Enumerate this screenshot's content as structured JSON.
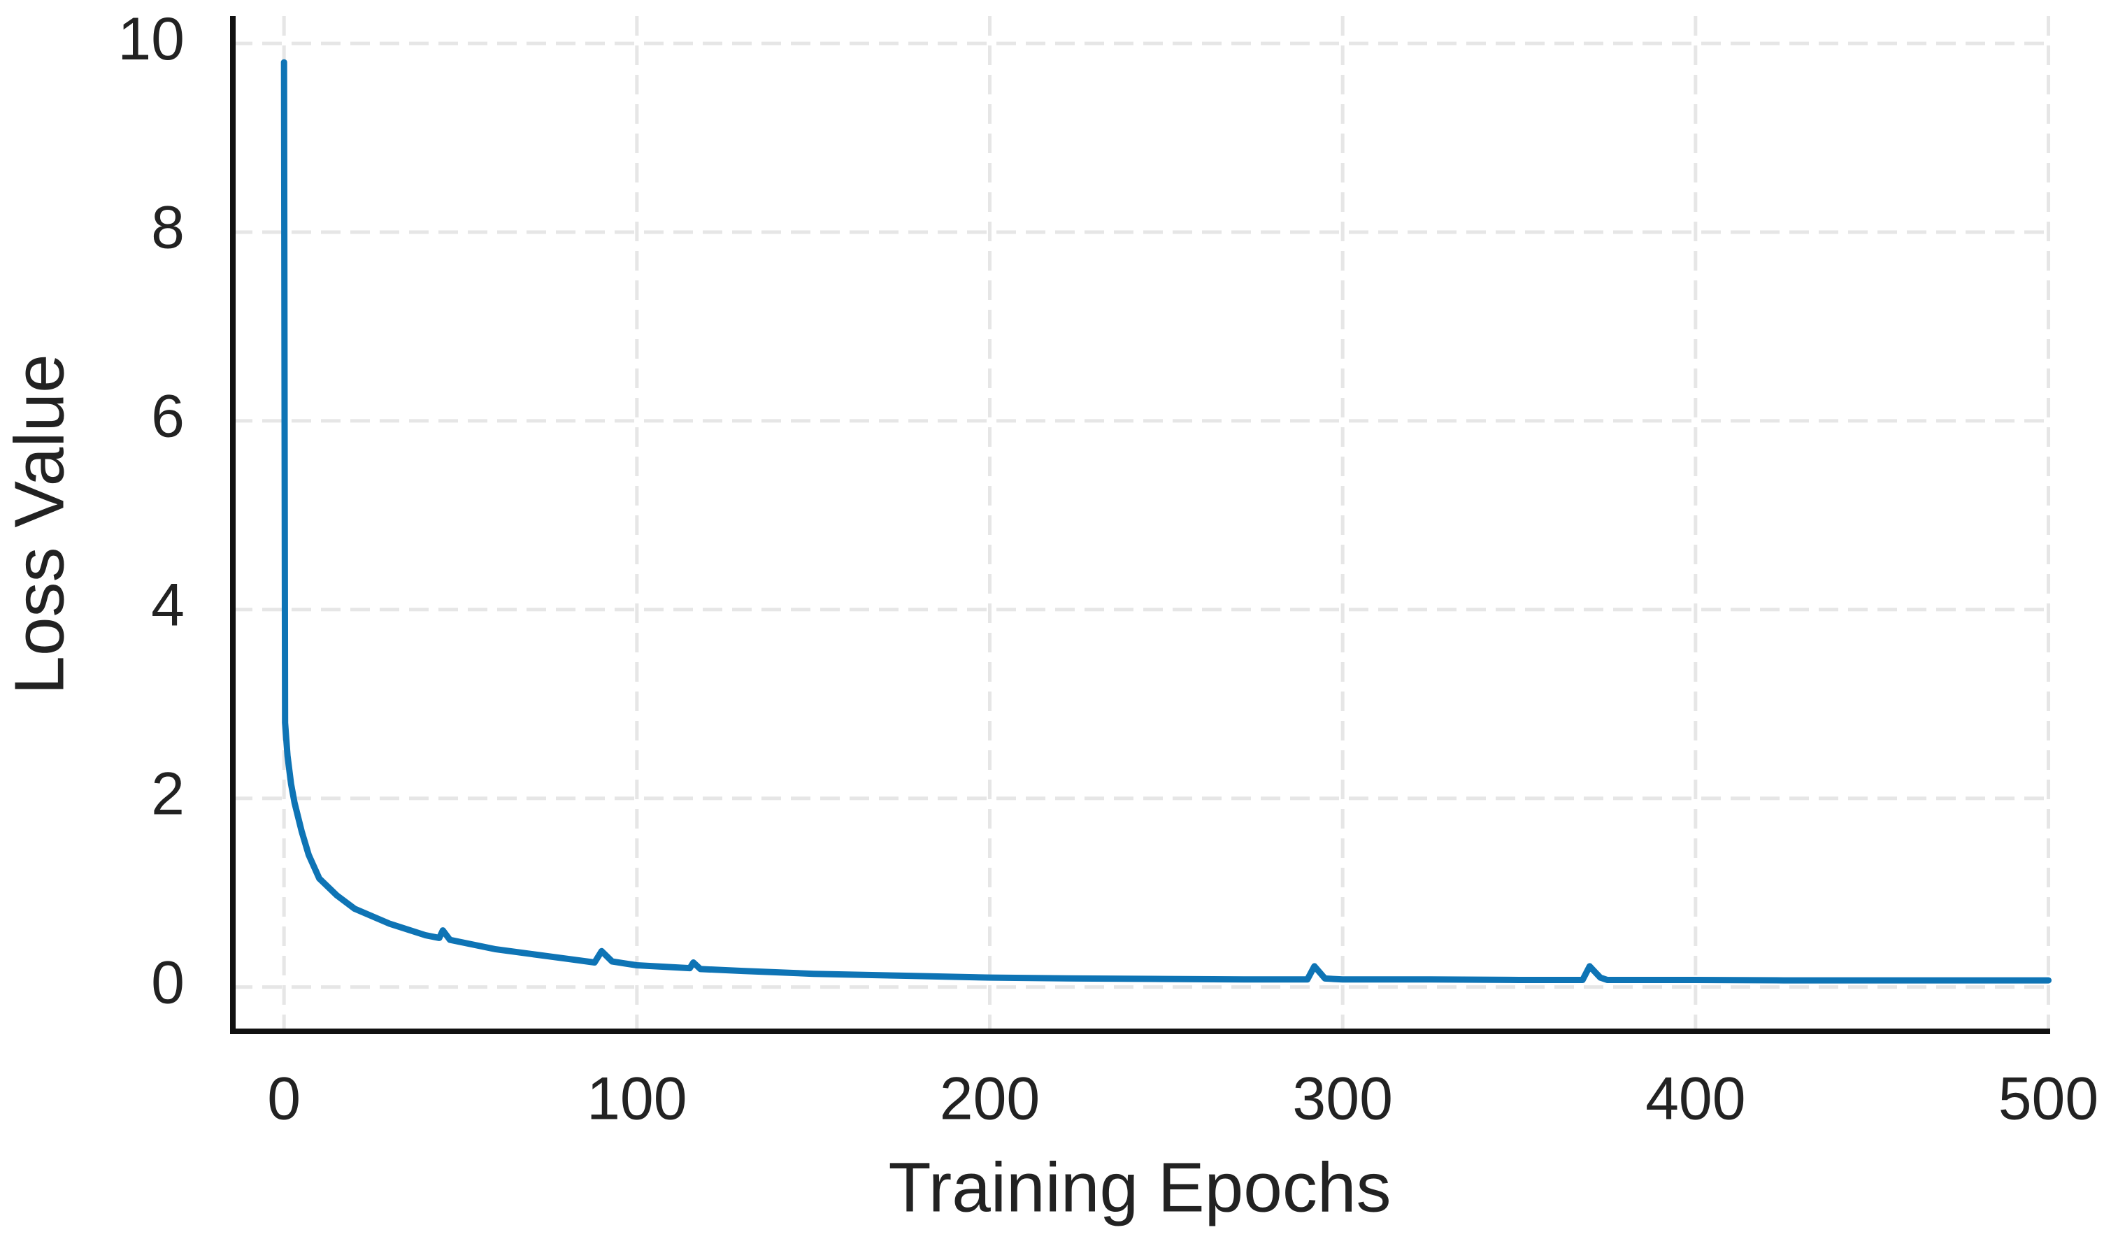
{
  "chart_data": {
    "type": "line",
    "x_label": "Training Epochs",
    "y_label": "Loss Value",
    "x": [
      0,
      0.3,
      1,
      2,
      3,
      5,
      7,
      10,
      15,
      20,
      30,
      40,
      44,
      45,
      47,
      60,
      70,
      80,
      88,
      90,
      93,
      100,
      115,
      116,
      118,
      130,
      150,
      175,
      200,
      225,
      250,
      275,
      290,
      292,
      295,
      300,
      325,
      350,
      368,
      370,
      373,
      375,
      400,
      425,
      450,
      475,
      500
    ],
    "values": [
      9.8,
      2.8,
      2.45,
      2.15,
      1.95,
      1.65,
      1.4,
      1.15,
      0.97,
      0.83,
      0.67,
      0.55,
      0.52,
      0.6,
      0.5,
      0.4,
      0.35,
      0.3,
      0.26,
      0.38,
      0.27,
      0.23,
      0.2,
      0.26,
      0.19,
      0.17,
      0.14,
      0.12,
      0.1,
      0.09,
      0.085,
      0.08,
      0.08,
      0.22,
      0.09,
      0.08,
      0.08,
      0.075,
      0.075,
      0.22,
      0.1,
      0.075,
      0.075,
      0.07,
      0.07,
      0.07,
      0.07
    ],
    "color": "#0e74b5",
    "xlim": [
      -14.5,
      500.5
    ],
    "ylim": [
      -0.47,
      10.29
    ],
    "xticks": [
      0,
      100,
      200,
      300,
      400,
      500
    ],
    "yticks": [
      0,
      2,
      4,
      6,
      8,
      10
    ],
    "grid": true
  }
}
